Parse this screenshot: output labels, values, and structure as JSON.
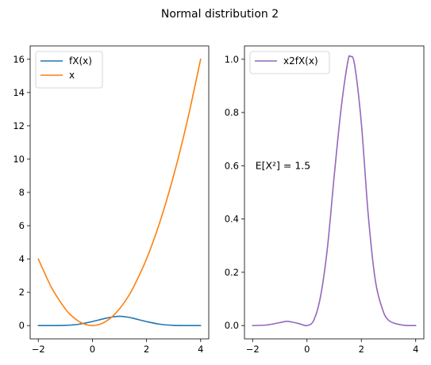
{
  "figure": {
    "suptitle": "Normal distribution 2"
  },
  "chart_data": [
    {
      "type": "line",
      "title": "",
      "xlabel": "",
      "ylabel": "",
      "xlim": [
        -2.3,
        4.3
      ],
      "ylim": [
        -0.8,
        16.8
      ],
      "xticks": [
        -2,
        0,
        2,
        4
      ],
      "xtick_labels": [
        "−2",
        "0",
        "2",
        "4"
      ],
      "yticks": [
        0,
        2,
        4,
        6,
        8,
        10,
        12,
        14,
        16
      ],
      "ytick_labels": [
        "0",
        "2",
        "4",
        "6",
        "8",
        "10",
        "12",
        "14",
        "16"
      ],
      "grid": false,
      "legend_position": "top-left",
      "x": [
        -2.0,
        -1.5,
        -1.0,
        -0.75,
        -0.5,
        -0.25,
        0.0,
        0.25,
        0.5,
        0.75,
        1.0,
        1.25,
        1.5,
        2.0,
        2.5,
        3.0,
        3.5,
        4.0
      ],
      "series": [
        {
          "name": "fX(x)",
          "color": "#1f77b4",
          "values": [
            0.0,
            0.001,
            0.011,
            0.035,
            0.08,
            0.155,
            0.24,
            0.34,
            0.44,
            0.52,
            0.56,
            0.52,
            0.44,
            0.24,
            0.08,
            0.011,
            0.001,
            0.0
          ]
        },
        {
          "name": "x",
          "color": "#ff7f0e",
          "values": [
            4.0,
            2.25,
            1.0,
            0.5625,
            0.25,
            0.0625,
            0.0,
            0.0625,
            0.25,
            0.5625,
            1.0,
            1.5625,
            2.25,
            4.0,
            6.25,
            9.0,
            12.25,
            16.0
          ]
        }
      ]
    },
    {
      "type": "line",
      "title": "",
      "xlabel": "",
      "ylabel": "",
      "xlim": [
        -2.3,
        4.3
      ],
      "ylim": [
        -0.05,
        1.05
      ],
      "xticks": [
        -2,
        0,
        2,
        4
      ],
      "xtick_labels": [
        "−2",
        "0",
        "2",
        "4"
      ],
      "yticks": [
        0.0,
        0.2,
        0.4,
        0.6,
        0.8,
        1.0
      ],
      "ytick_labels": [
        "0.0",
        "0.2",
        "0.4",
        "0.6",
        "0.8",
        "1.0"
      ],
      "grid": false,
      "legend_position": "top-left",
      "annotation": {
        "text": "E[X²] = 1.5",
        "x": -1.9,
        "y": 0.6
      },
      "x": [
        -2.0,
        -1.5,
        -1.0,
        -0.75,
        -0.5,
        -0.25,
        0.0,
        0.25,
        0.5,
        0.75,
        1.0,
        1.25,
        1.5,
        1.6,
        1.75,
        2.0,
        2.25,
        2.5,
        2.75,
        3.0,
        3.5,
        4.0
      ],
      "series": [
        {
          "name": "x2fX(x)",
          "color": "#9467bd",
          "values": [
            0.0,
            0.002,
            0.011,
            0.016,
            0.012,
            0.006,
            0.0,
            0.02,
            0.11,
            0.29,
            0.56,
            0.81,
            0.99,
            1.01,
            0.98,
            0.76,
            0.42,
            0.18,
            0.07,
            0.02,
            0.002,
            0.0
          ]
        }
      ]
    }
  ]
}
